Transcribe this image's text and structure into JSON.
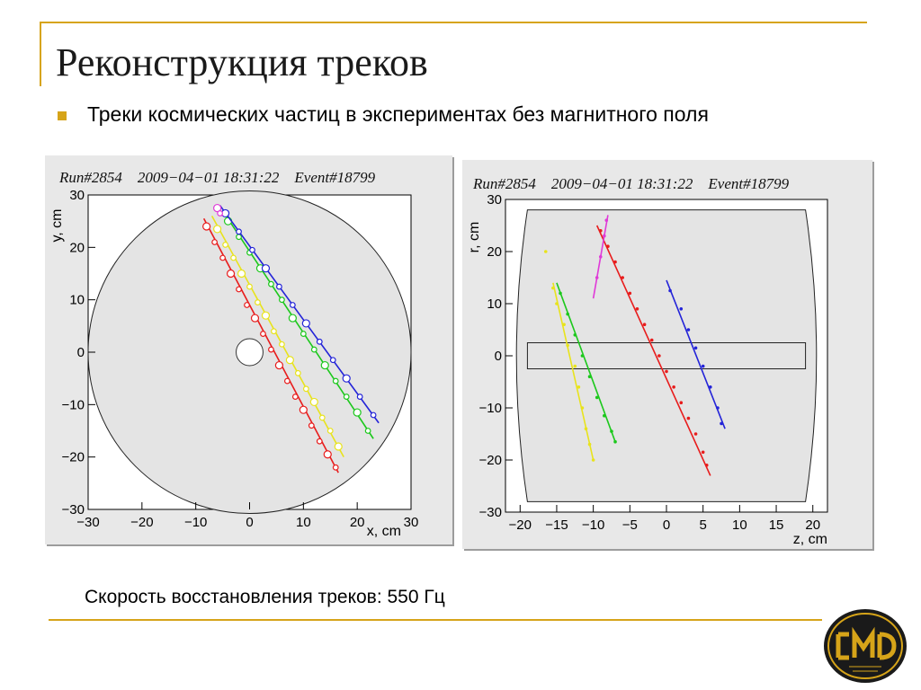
{
  "slide": {
    "title": "Реконструкция треков",
    "bullet": "Треки космических частиц в экспериментах без магнитного поля",
    "footer": "Скорость восстановления треков: 550 Гц",
    "accent_color": "#d6a419"
  },
  "logo": {
    "icon": "cmd-logo-icon",
    "text": "СМД"
  },
  "chart_data": [
    {
      "type": "scatter",
      "title": "Run#2854    2009−04−01 18:31:22    Event#18799",
      "xlabel": "x, cm",
      "ylabel": "y, cm",
      "xlim": [
        -30,
        30
      ],
      "ylim": [
        -30,
        30
      ],
      "xticks": [
        -30,
        -20,
        -10,
        0,
        10,
        20,
        30
      ],
      "yticks": [
        -30,
        -20,
        -10,
        0,
        10,
        20,
        30
      ],
      "series": [
        {
          "color": "#e81c1c",
          "line": [
            [
              -8.5,
              25.5
            ],
            [
              16.5,
              -23
            ]
          ],
          "hits": [
            [
              -8,
              24
            ],
            [
              -6.5,
              21
            ],
            [
              -5,
              18
            ],
            [
              -3.5,
              15
            ],
            [
              -2,
              12
            ],
            [
              -0.5,
              9
            ],
            [
              1,
              6.5
            ],
            [
              2.5,
              3.5
            ],
            [
              4,
              0.5
            ],
            [
              5.5,
              -2.5
            ],
            [
              7,
              -5.5
            ],
            [
              8.5,
              -8.5
            ],
            [
              10,
              -11
            ],
            [
              11.5,
              -14
            ],
            [
              13,
              -17
            ],
            [
              14.5,
              -19.5
            ],
            [
              16,
              -22
            ]
          ]
        },
        {
          "color": "#e8e31c",
          "line": [
            [
              -7,
              26
            ],
            [
              17.5,
              -20
            ]
          ],
          "hits": [
            [
              -6,
              23.5
            ],
            [
              -4.5,
              20.5
            ],
            [
              -3,
              18
            ],
            [
              -1.5,
              15
            ],
            [
              0,
              12.5
            ],
            [
              1.5,
              9.5
            ],
            [
              3,
              7
            ],
            [
              4.5,
              4
            ],
            [
              6,
              1.5
            ],
            [
              7.5,
              -1.5
            ],
            [
              9,
              -4
            ],
            [
              10.5,
              -7
            ],
            [
              12,
              -9.5
            ],
            [
              13.5,
              -12.5
            ],
            [
              15,
              -15
            ],
            [
              16.5,
              -18
            ]
          ]
        },
        {
          "color": "#1cc81c",
          "line": [
            [
              -5,
              27
            ],
            [
              23,
              -16.5
            ]
          ],
          "hits": [
            [
              -4,
              25
            ],
            [
              -2,
              22
            ],
            [
              0,
              19
            ],
            [
              2,
              16
            ],
            [
              4,
              13
            ],
            [
              6,
              10
            ],
            [
              8,
              6.5
            ],
            [
              10,
              3.5
            ],
            [
              12,
              0.5
            ],
            [
              14,
              -2.5
            ],
            [
              16,
              -5.5
            ],
            [
              18,
              -8.5
            ],
            [
              20,
              -11.5
            ],
            [
              22,
              -15
            ]
          ]
        },
        {
          "color": "#2424d8",
          "line": [
            [
              -5.5,
              28
            ],
            [
              24,
              -13.5
            ]
          ],
          "hits": [
            [
              -4.5,
              26.5
            ],
            [
              -2,
              23
            ],
            [
              0.5,
              19.5
            ],
            [
              3,
              16
            ],
            [
              5.5,
              12.5
            ],
            [
              8,
              9
            ],
            [
              10.5,
              5.5
            ],
            [
              13,
              2
            ],
            [
              15.5,
              -1.5
            ],
            [
              18,
              -5
            ],
            [
              20.5,
              -8.5
            ],
            [
              23,
              -12
            ]
          ]
        },
        {
          "color": "#e03ad8",
          "line": [
            [
              -6.5,
              28
            ],
            [
              -5,
              26
            ]
          ],
          "hits": [
            [
              -6,
              27.5
            ],
            [
              -5.5,
              26.5
            ]
          ]
        }
      ]
    },
    {
      "type": "scatter",
      "title": "Run#2854    2009−04−01 18:31:22    Event#18799",
      "xlabel": "z, cm",
      "ylabel": "r, cm",
      "xlim": [
        -22,
        22
      ],
      "ylim": [
        -30,
        30
      ],
      "xticks": [
        -20,
        -15,
        -10,
        -5,
        0,
        5,
        10,
        15,
        20
      ],
      "yticks": [
        -30,
        -20,
        -10,
        0,
        10,
        20,
        30
      ],
      "series": [
        {
          "color": "#e81c1c",
          "line": [
            [
              -9.5,
              25
            ],
            [
              6,
              -23
            ]
          ],
          "hits": [
            [
              -9,
              24
            ],
            [
              -8,
              21
            ],
            [
              -7,
              18
            ],
            [
              -6,
              15
            ],
            [
              -5,
              12
            ],
            [
              -4,
              9
            ],
            [
              -3,
              6
            ],
            [
              -2,
              3
            ],
            [
              -1,
              0
            ],
            [
              0,
              -3
            ],
            [
              1,
              -6
            ],
            [
              2,
              -9
            ],
            [
              3,
              -12
            ],
            [
              4,
              -15
            ],
            [
              5,
              -18.5
            ],
            [
              5.5,
              -21
            ]
          ]
        },
        {
          "color": "#e8e31c",
          "line": [
            [
              -15.5,
              14
            ],
            [
              -10,
              -20
            ]
          ],
          "hits": [
            [
              -16.5,
              20
            ],
            [
              -15.5,
              13
            ],
            [
              -15,
              10
            ],
            [
              -14,
              6
            ],
            [
              -13.5,
              2
            ],
            [
              -12.5,
              -2
            ],
            [
              -12,
              -6
            ],
            [
              -11.5,
              -10
            ],
            [
              -11,
              -14
            ],
            [
              -10.5,
              -17
            ],
            [
              -10,
              -20
            ]
          ]
        },
        {
          "color": "#1cc81c",
          "line": [
            [
              -15,
              14
            ],
            [
              -7,
              -16.5
            ]
          ],
          "hits": [
            [
              -14.5,
              12
            ],
            [
              -13.5,
              8
            ],
            [
              -12.5,
              4
            ],
            [
              -11.5,
              0
            ],
            [
              -10.5,
              -4
            ],
            [
              -9.5,
              -8
            ],
            [
              -8.5,
              -11.5
            ],
            [
              -7.5,
              -14.5
            ],
            [
              -7,
              -16.5
            ]
          ]
        },
        {
          "color": "#2424d8",
          "line": [
            [
              0,
              14.5
            ],
            [
              8,
              -14
            ]
          ],
          "hits": [
            [
              0.5,
              12.5
            ],
            [
              2,
              9
            ],
            [
              3,
              5
            ],
            [
              4,
              1.5
            ],
            [
              5,
              -2
            ],
            [
              6,
              -6
            ],
            [
              7,
              -10
            ],
            [
              7.5,
              -13
            ]
          ]
        },
        {
          "color": "#e03ad8",
          "line": [
            [
              -10,
              11
            ],
            [
              -8,
              27
            ]
          ],
          "hits": [
            [
              -9.5,
              15
            ],
            [
              -9,
              19
            ],
            [
              -8.5,
              23
            ],
            [
              -8.2,
              26
            ]
          ]
        }
      ]
    }
  ]
}
